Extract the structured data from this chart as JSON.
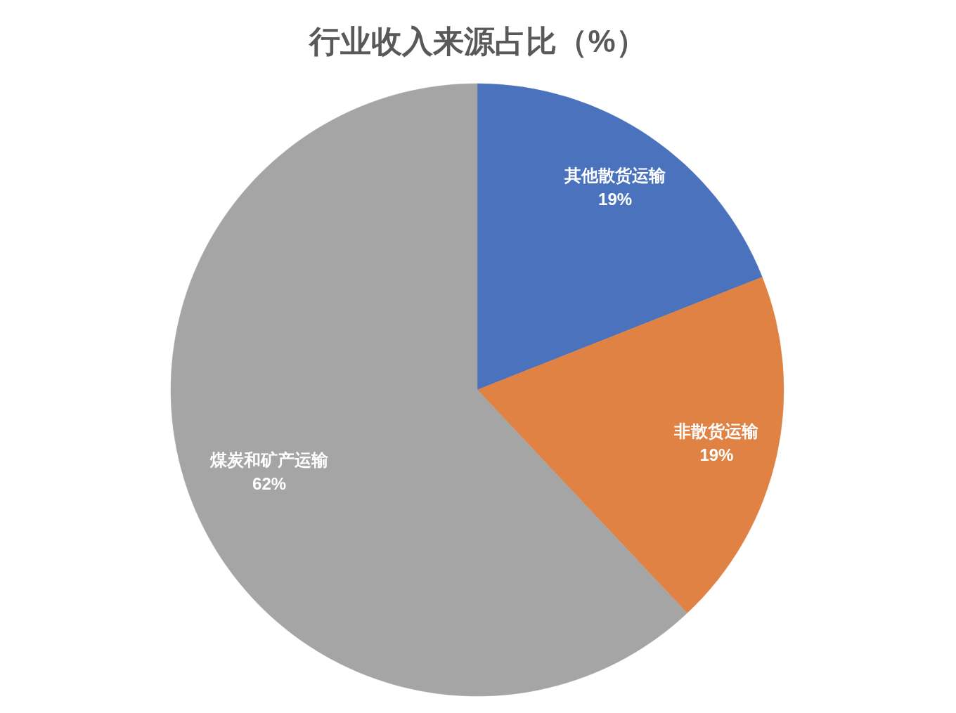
{
  "chart_data": {
    "type": "pie",
    "title": "行业收入来源占比（%）",
    "categories": [
      "其他散货运输",
      "非散货运输",
      "煤炭和矿产运输"
    ],
    "values": [
      19,
      19,
      62
    ],
    "colors": [
      "#4a72bd",
      "#df8244",
      "#a5a5a5"
    ],
    "value_labels": [
      "19%",
      "19%",
      "62%"
    ]
  }
}
